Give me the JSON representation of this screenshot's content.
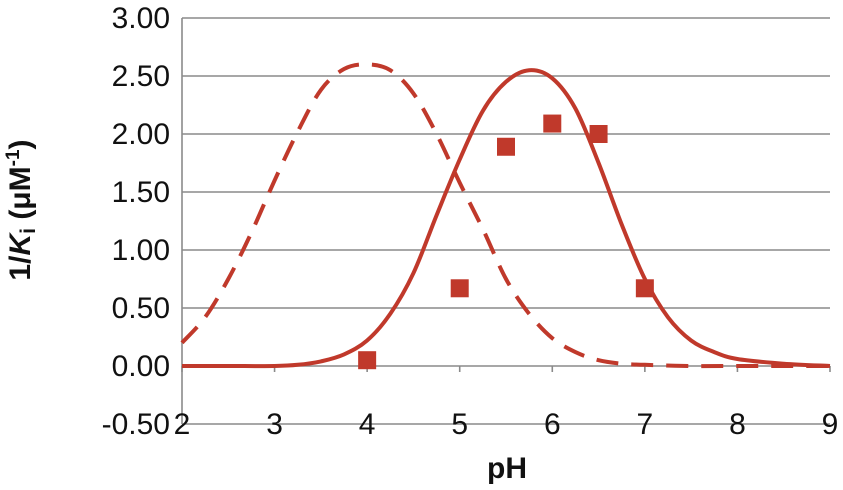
{
  "chart_data": {
    "type": "line",
    "xlabel": "pH",
    "ylabel": {
      "prefix": "1/",
      "italic": "K",
      "subscript": "i",
      "unit_open": " (μM",
      "superscript": "-1",
      "unit_close": ")"
    },
    "xlim": [
      2,
      9
    ],
    "ylim": [
      -0.5,
      3.0
    ],
    "x_ticks": [
      "2",
      "3",
      "4",
      "5",
      "6",
      "7",
      "8",
      "9"
    ],
    "y_ticks": [
      "-0.50",
      "0.00",
      "0.50",
      "1.00",
      "1.50",
      "2.00",
      "2.50",
      "3.00"
    ],
    "grid": "horizontal",
    "colors": {
      "series": "#c0392b",
      "grid": "#8a8a8a",
      "axis": "#8a8a8a"
    },
    "series": [
      {
        "style": "dashed",
        "x": [
          2.0,
          2.25,
          2.5,
          2.75,
          3.0,
          3.25,
          3.5,
          3.75,
          4.0,
          4.25,
          4.5,
          4.75,
          5.0,
          5.25,
          5.5,
          5.75,
          6.0,
          6.25,
          6.5,
          6.75,
          7.0,
          7.5,
          8.0,
          8.5,
          9.0
        ],
        "y": [
          0.2,
          0.42,
          0.75,
          1.15,
          1.6,
          2.02,
          2.38,
          2.56,
          2.6,
          2.55,
          2.35,
          2.0,
          1.58,
          1.18,
          0.75,
          0.45,
          0.24,
          0.12,
          0.05,
          0.02,
          0.01,
          0.0,
          0.0,
          0.0,
          0.0
        ]
      },
      {
        "style": "solid",
        "x": [
          2.0,
          2.5,
          3.0,
          3.25,
          3.5,
          3.75,
          4.0,
          4.25,
          4.5,
          4.75,
          5.0,
          5.25,
          5.5,
          5.75,
          6.0,
          6.25,
          6.5,
          6.75,
          7.0,
          7.25,
          7.5,
          7.75,
          8.0,
          8.5,
          9.0
        ],
        "y": [
          0.0,
          0.0,
          0.0,
          0.01,
          0.04,
          0.1,
          0.22,
          0.45,
          0.8,
          1.3,
          1.78,
          2.2,
          2.45,
          2.55,
          2.48,
          2.22,
          1.75,
          1.22,
          0.75,
          0.42,
          0.22,
          0.12,
          0.06,
          0.02,
          0.0
        ]
      },
      {
        "style": "markers",
        "x": [
          4.0,
          5.0,
          5.5,
          6.0,
          6.5,
          7.0
        ],
        "y": [
          0.05,
          0.67,
          1.89,
          2.09,
          2.0,
          0.67
        ]
      }
    ]
  }
}
